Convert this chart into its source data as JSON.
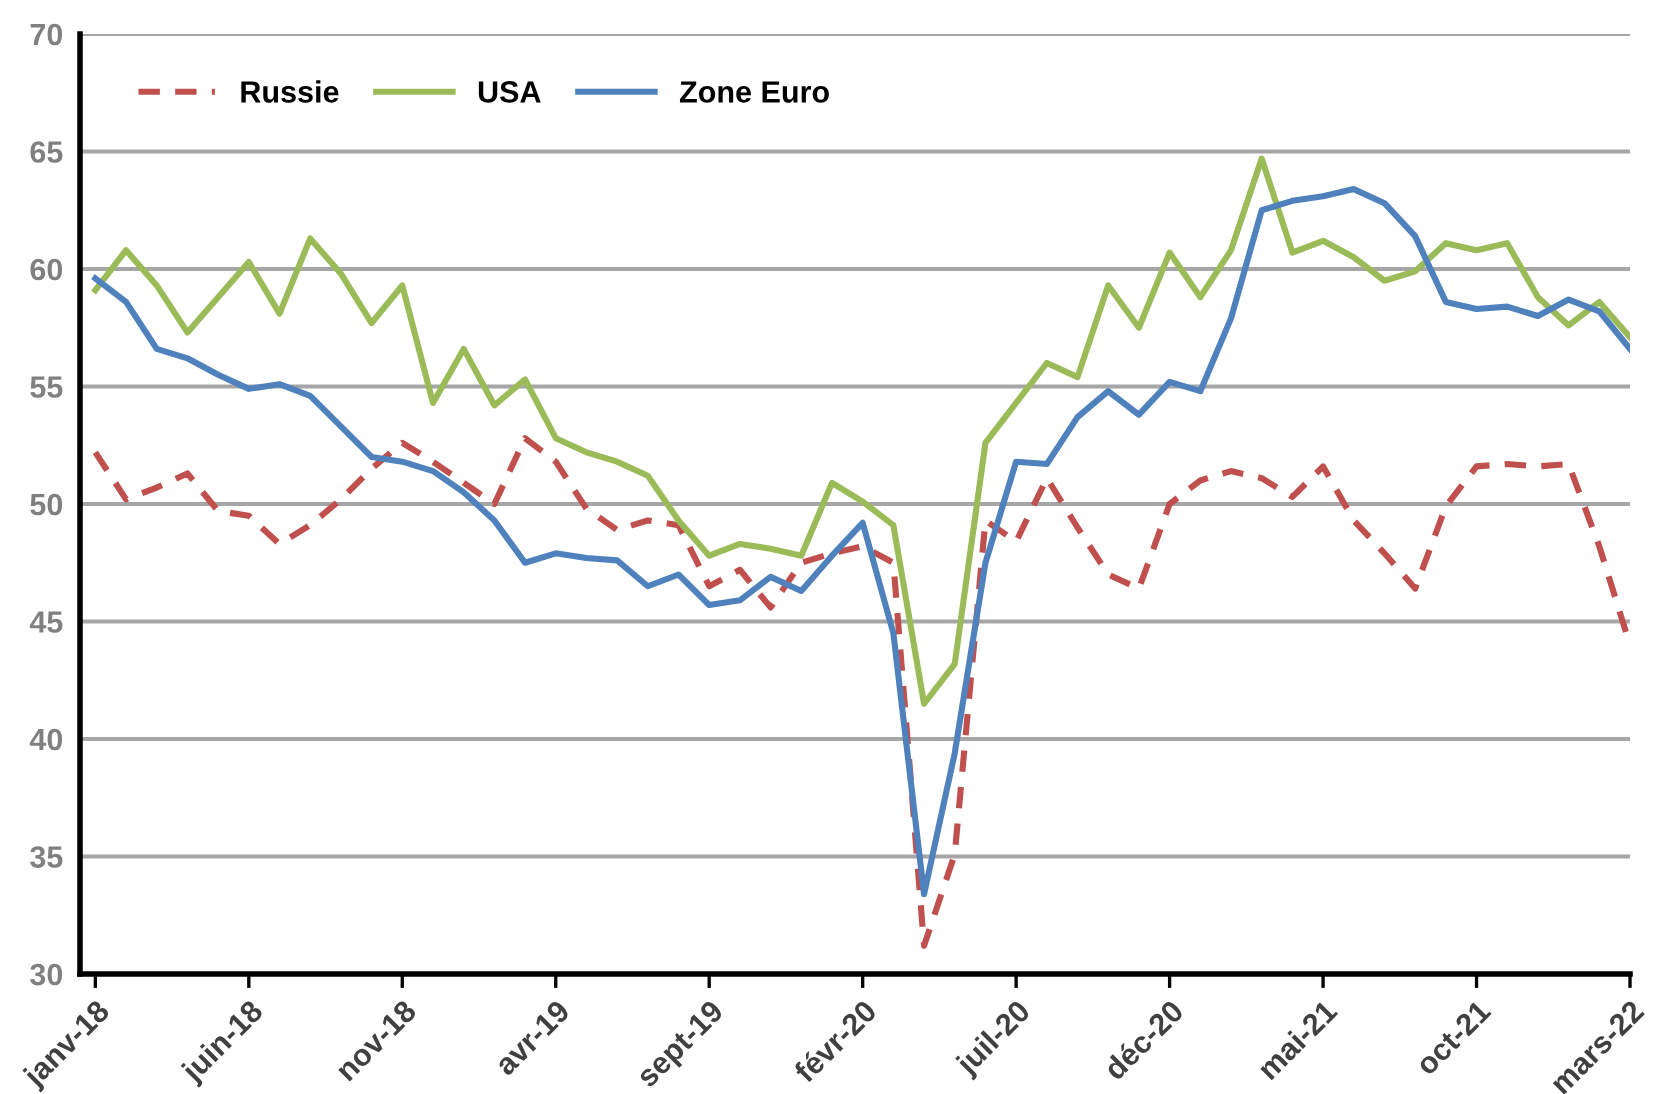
{
  "chart_data": {
    "type": "line",
    "categories": [
      "janv-18",
      null,
      null,
      null,
      null,
      "juin-18",
      null,
      null,
      null,
      null,
      "nov-18",
      null,
      null,
      null,
      null,
      "avr-19",
      null,
      null,
      null,
      null,
      "sept-19",
      null,
      null,
      null,
      null,
      "févr-20",
      null,
      null,
      null,
      null,
      "juil-20",
      null,
      null,
      null,
      null,
      "déc-20",
      null,
      null,
      null,
      null,
      "mai-21",
      null,
      null,
      null,
      null,
      "oct-21",
      null,
      null,
      null,
      null,
      "mars-22"
    ],
    "series": [
      {
        "name": "Russie",
        "color": "#c0504d",
        "line_style": "dashed",
        "values": [
          52.2,
          50.2,
          50.7,
          51.3,
          49.7,
          49.5,
          48.3,
          49.1,
          50.2,
          51.5,
          52.6,
          51.8,
          50.9,
          50.0,
          52.8,
          51.8,
          49.8,
          48.9,
          49.3,
          49.1,
          46.5,
          47.2,
          45.6,
          47.5,
          47.9,
          48.2,
          47.5,
          31.2,
          35.1,
          49.3,
          48.4,
          51.1,
          49.0,
          47.0,
          46.4,
          50.0,
          51.0,
          51.4,
          51.1,
          50.3,
          51.6,
          49.3,
          47.9,
          46.4,
          49.9,
          51.6,
          51.7,
          51.6,
          51.7,
          48.2,
          44.0
        ]
      },
      {
        "name": "USA",
        "color": "#9bbb59",
        "line_style": "solid",
        "values": [
          59.1,
          60.8,
          59.3,
          57.3,
          58.8,
          60.3,
          58.1,
          61.3,
          59.8,
          57.7,
          59.3,
          54.3,
          56.6,
          54.2,
          55.3,
          52.8,
          52.2,
          51.8,
          51.2,
          49.3,
          47.8,
          48.3,
          48.1,
          47.8,
          50.9,
          50.1,
          49.1,
          41.5,
          43.2,
          52.6,
          54.3,
          56.0,
          55.4,
          59.3,
          57.5,
          60.7,
          58.8,
          60.8,
          64.7,
          60.7,
          61.2,
          60.5,
          59.5,
          59.9,
          61.1,
          60.8,
          61.1,
          58.8,
          57.6,
          58.6,
          57.1
        ]
      },
      {
        "name": "Zone Euro",
        "color": "#4f81bd",
        "line_style": "solid",
        "values": [
          59.6,
          58.6,
          56.6,
          56.2,
          55.5,
          54.9,
          55.1,
          54.6,
          53.3,
          52.0,
          51.8,
          51.4,
          50.5,
          49.3,
          47.5,
          47.9,
          47.7,
          47.6,
          46.5,
          47.0,
          45.7,
          45.9,
          46.9,
          46.3,
          47.8,
          49.2,
          44.5,
          33.4,
          39.4,
          47.5,
          51.8,
          51.7,
          53.7,
          54.8,
          53.8,
          55.2,
          54.8,
          57.9,
          62.5,
          62.9,
          63.1,
          63.4,
          62.8,
          61.4,
          58.6,
          58.3,
          58.4,
          58.0,
          58.7,
          58.2,
          56.6
        ]
      }
    ],
    "ylim": [
      30,
      70
    ],
    "yticks": [
      30,
      35,
      40,
      45,
      50,
      55,
      60,
      65,
      70
    ],
    "grid": "y",
    "legend": "top left",
    "marker": "none"
  }
}
